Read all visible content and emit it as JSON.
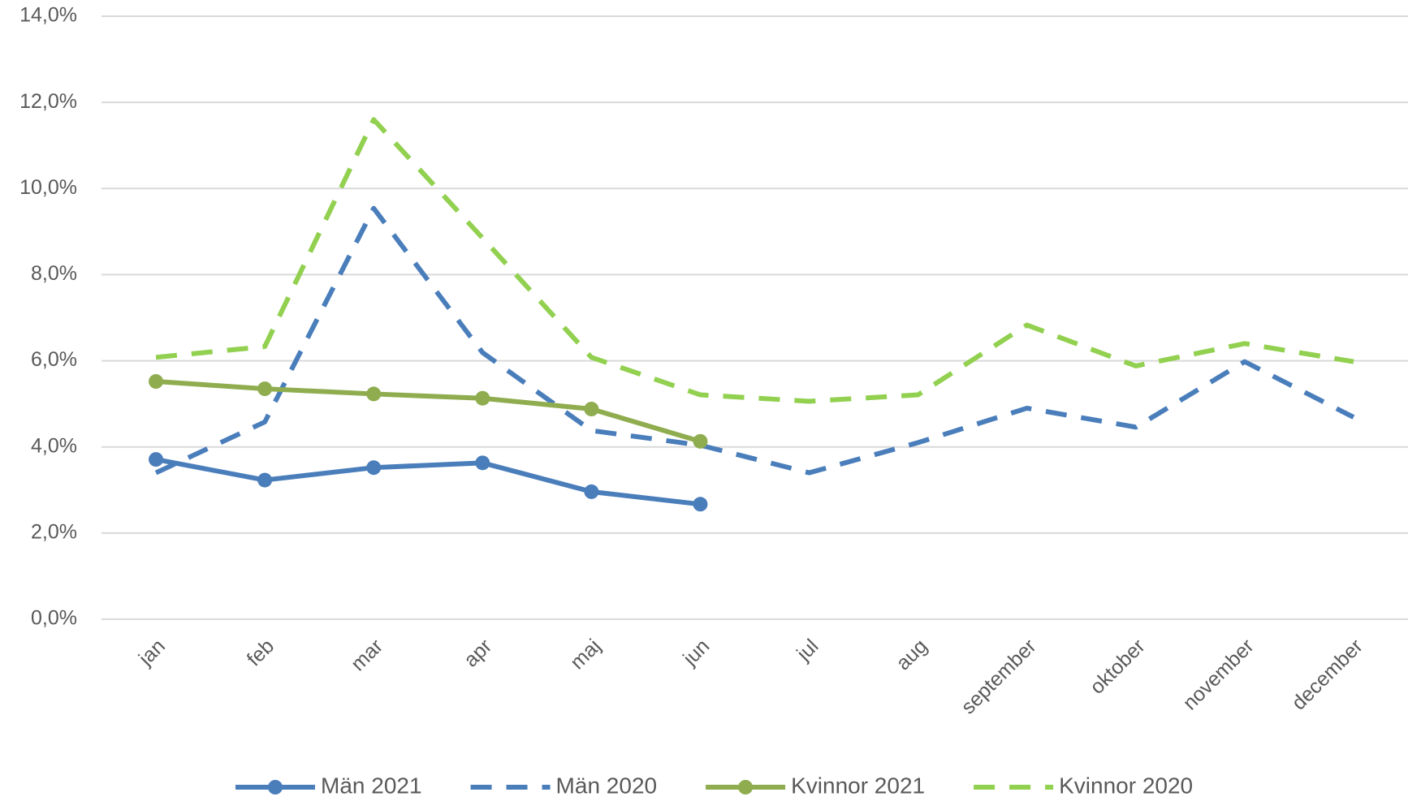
{
  "chart_data": {
    "type": "line",
    "categories": [
      "jan",
      "feb",
      "mar",
      "apr",
      "maj",
      "jun",
      "jul",
      "aug",
      "september",
      "oktober",
      "november",
      "december"
    ],
    "series": [
      {
        "name": "Män 2021",
        "color": "#4a7ebb",
        "dashed": false,
        "markers": true,
        "values": [
          3.71,
          3.23,
          3.52,
          3.63,
          2.96,
          2.67,
          null,
          null,
          null,
          null,
          null,
          null
        ]
      },
      {
        "name": "Män 2020",
        "color": "#4a7ebb",
        "dashed": true,
        "markers": false,
        "values": [
          3.4,
          4.58,
          9.54,
          6.19,
          4.38,
          4.04,
          3.4,
          4.1,
          4.9,
          4.46,
          5.98,
          4.69
        ]
      },
      {
        "name": "Kvinnor 2021",
        "color": "#8fad4f",
        "dashed": false,
        "markers": true,
        "values": [
          5.52,
          5.35,
          5.23,
          5.13,
          4.88,
          4.13,
          null,
          null,
          null,
          null,
          null,
          null
        ]
      },
      {
        "name": "Kvinnor 2020",
        "color": "#92d050",
        "dashed": true,
        "markers": false,
        "values": [
          6.08,
          6.33,
          11.6,
          8.85,
          6.08,
          5.21,
          5.06,
          5.21,
          6.83,
          5.88,
          6.4,
          5.98
        ]
      }
    ],
    "ylim": [
      0,
      14
    ],
    "yticks": [
      {
        "value": 0,
        "label": "0,0%"
      },
      {
        "value": 2,
        "label": "2,0%"
      },
      {
        "value": 4,
        "label": "4,0%"
      },
      {
        "value": 6,
        "label": "6,0%"
      },
      {
        "value": 8,
        "label": "8,0%"
      },
      {
        "value": 10,
        "label": "10,0%"
      },
      {
        "value": 12,
        "label": "12,0%"
      },
      {
        "value": 14,
        "label": "14,0%"
      }
    ],
    "grid": true,
    "legend": "bottom"
  }
}
